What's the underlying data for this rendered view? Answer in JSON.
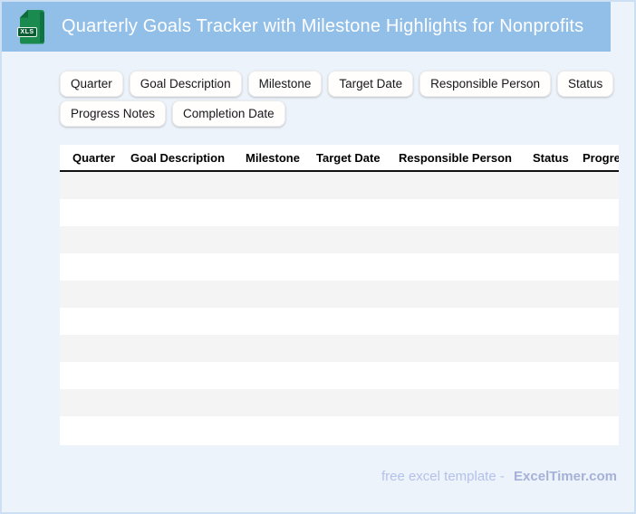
{
  "header": {
    "title": "Quarterly Goals Tracker with Milestone Highlights for Nonprofits",
    "file_badge": "XLS"
  },
  "chips": {
    "row1": [
      "Quarter",
      "Goal Description",
      "Milestone",
      "Target Date",
      "Responsible Person",
      "Status"
    ],
    "row2": [
      "Progress Notes",
      "Completion Date"
    ]
  },
  "table": {
    "columns": [
      "Quarter",
      "Goal Description",
      "Milestone",
      "Target Date",
      "Responsible Person",
      "Status",
      "Progress Notes"
    ],
    "visible_row_count": 10,
    "rows": []
  },
  "footer": {
    "tagline": "free excel template -",
    "brand": "ExcelTimer.com"
  },
  "colors": {
    "header_bg": "#92bfe8",
    "page_bg": "#edf3fa",
    "frame_border": "#cddff2",
    "icon_green": "#1a8a4f",
    "icon_badge_green": "#0a5c33",
    "row_stripe": "#f4f4f5",
    "header_rule": "#111111",
    "footer_tagline": "#b4c1ea",
    "footer_brand": "#a5b1d8"
  }
}
